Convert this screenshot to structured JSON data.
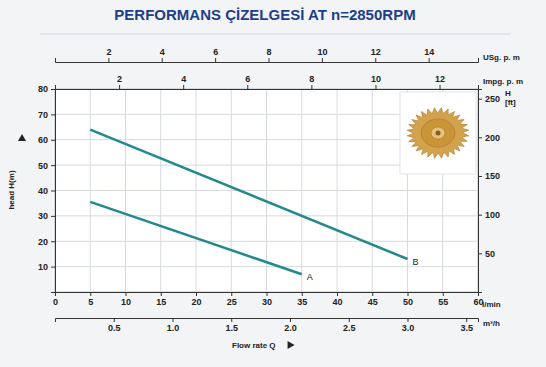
{
  "chart_data": {
    "type": "line",
    "title": "PERFORMANS ÇİZELGESİ AT n=2850RPM",
    "xlabel": "Flow rate Q",
    "x_unit": "l/min",
    "ylabel": "head H(m)",
    "y2label": "H [ft]",
    "xlim": [
      0,
      60
    ],
    "xticks": [
      0,
      5,
      10,
      15,
      20,
      25,
      30,
      35,
      40,
      45,
      50,
      55,
      60
    ],
    "ylim": [
      0,
      80
    ],
    "yticks": [
      10,
      20,
      30,
      40,
      50,
      60,
      70,
      80
    ],
    "y2lim": [
      0,
      262.47
    ],
    "y2ticks": [
      50,
      100,
      150,
      200,
      250
    ],
    "extra_x_axes": [
      {
        "label": "m³/h",
        "xlim": [
          0,
          3.6
        ],
        "xticks": [
          0.5,
          {
            "value": 1,
            "label": "1.0"
          },
          1.5,
          {
            "value": 2,
            "label": "2.0"
          },
          2.5,
          {
            "value": 3,
            "label": "3.0"
          },
          3.5
        ]
      },
      {
        "label": "USg. p. m",
        "xlim": [
          0,
          15.85
        ],
        "xticks": [
          2,
          4,
          6,
          8,
          10,
          12,
          14
        ]
      },
      {
        "label": "Impg. p. m",
        "xlim": [
          0,
          13.2
        ],
        "xticks": [
          2,
          4,
          6,
          8,
          10,
          12
        ]
      }
    ],
    "grid": true,
    "series": [
      {
        "name": "A",
        "color": "#23898f",
        "x": [
          5,
          35
        ],
        "values": [
          35.5,
          7
        ]
      },
      {
        "name": "B",
        "color": "#23898f",
        "x": [
          5,
          50
        ],
        "values": [
          64,
          13
        ]
      }
    ]
  }
}
